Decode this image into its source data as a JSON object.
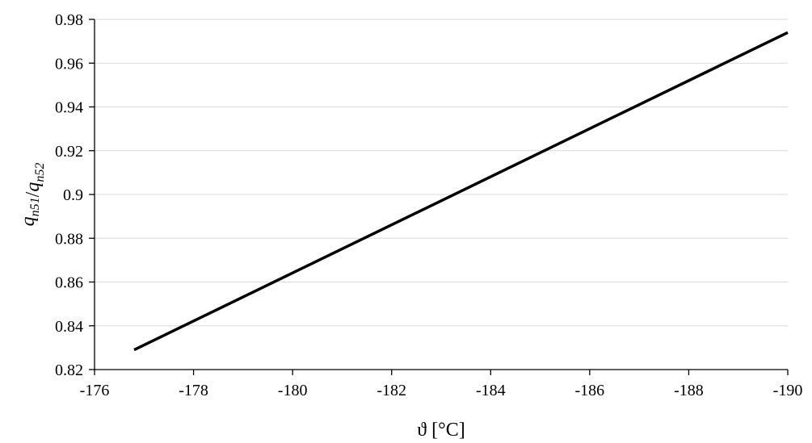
{
  "chart_data": {
    "type": "line",
    "xlabel": "ϑ [°C]",
    "ylabel_parts": [
      {
        "text": "q",
        "sub": "n51"
      },
      {
        "text": "/",
        "sub": ""
      },
      {
        "text": "q",
        "sub": "n52"
      }
    ],
    "xlim": [
      -176,
      -190
    ],
    "ylim": [
      0.82,
      0.98
    ],
    "xticks": [
      -176,
      -178,
      -180,
      -182,
      -184,
      -186,
      -188,
      -190
    ],
    "xtick_labels": [
      "-176",
      "-178",
      "-180",
      "-182",
      "-184",
      "-186",
      "-188",
      "-190"
    ],
    "yticks": [
      0.82,
      0.84,
      0.86,
      0.88,
      0.9,
      0.92,
      0.94,
      0.96,
      0.98
    ],
    "ytick_labels": [
      "0.82",
      "0.84",
      "0.86",
      "0.88",
      "0.9",
      "0.92",
      "0.94",
      "0.96",
      "0.98"
    ],
    "grid": "horizontal",
    "series": [
      {
        "x": [
          -176.8,
          -190.0
        ],
        "y": [
          0.829,
          0.974
        ],
        "color": "#000000"
      }
    ]
  }
}
